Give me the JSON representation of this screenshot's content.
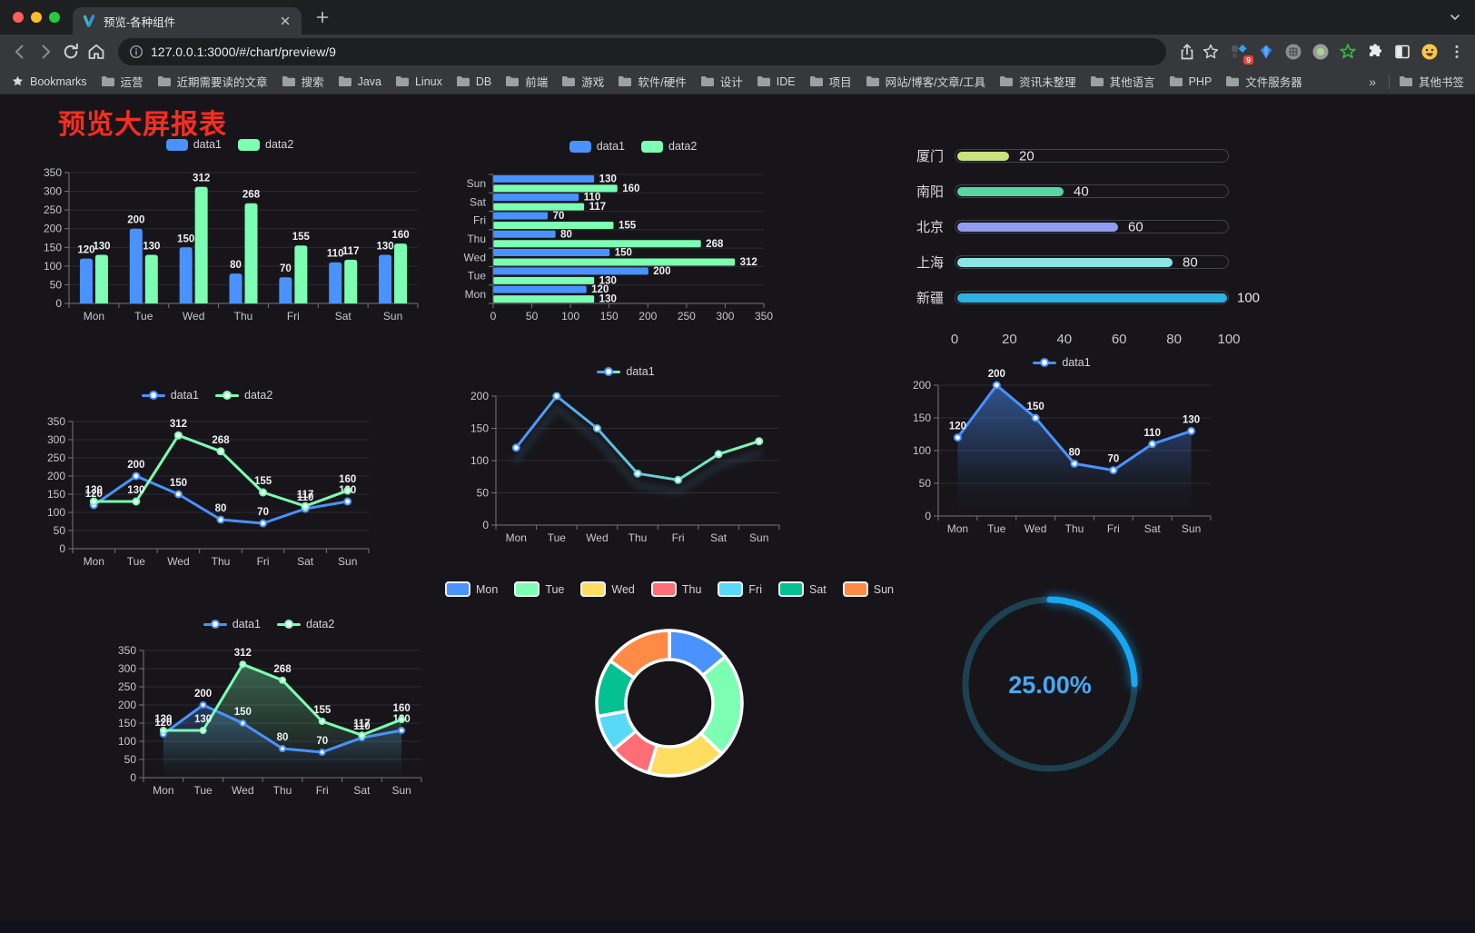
{
  "browser": {
    "tab_title": "预览-各种组件",
    "url": "127.0.0.1:3000/#/chart/preview/9",
    "extension_badge": "9",
    "bookmarks_label": "Bookmarks",
    "bookmarks": [
      "运营",
      "近期需要读的文章",
      "搜索",
      "Java",
      "Linux",
      "DB",
      "前端",
      "游戏",
      "软件/硬件",
      "设计",
      "IDE",
      "项目",
      "网站/博客/文章/工具",
      "资讯未整理",
      "其他语言",
      "PHP",
      "文件服务器"
    ],
    "bookmarks_overflow": "»",
    "other_bookmarks": "其他书签"
  },
  "page": {
    "title": "预览大屏报表",
    "title_color": "#fa2d1f"
  },
  "chart_data": [
    {
      "id": "grouped-bar",
      "type": "bar",
      "categories": [
        "Mon",
        "Tue",
        "Wed",
        "Thu",
        "Fri",
        "Sat",
        "Sun"
      ],
      "series": [
        {
          "name": "data1",
          "color": "#4992ff",
          "values": [
            120,
            200,
            150,
            80,
            70,
            110,
            130
          ]
        },
        {
          "name": "data2",
          "color": "#7cffb2",
          "values": [
            130,
            130,
            312,
            268,
            155,
            117,
            160
          ]
        }
      ],
      "ylim": [
        0,
        350
      ],
      "yticks": [
        0,
        50,
        100,
        150,
        200,
        250,
        300,
        350
      ],
      "legend": "top",
      "value_labels": true
    },
    {
      "id": "horizontal-bar",
      "type": "hbar",
      "categories": [
        "Mon",
        "Tue",
        "Wed",
        "Thu",
        "Fri",
        "Sat",
        "Sun"
      ],
      "series": [
        {
          "name": "data1",
          "color": "#4992ff",
          "values": [
            120,
            200,
            150,
            80,
            70,
            110,
            130
          ]
        },
        {
          "name": "data2",
          "color": "#7cffb2",
          "values": [
            130,
            130,
            312,
            268,
            155,
            117,
            160
          ]
        }
      ],
      "xlim": [
        0,
        350
      ],
      "xticks": [
        0,
        50,
        100,
        150,
        200,
        250,
        300,
        350
      ],
      "legend": "top",
      "value_labels": true
    },
    {
      "id": "city-progress",
      "type": "progress",
      "max": 100,
      "axis_ticks": [
        0,
        20,
        40,
        60,
        80,
        100
      ],
      "items": [
        {
          "label": "厦门",
          "value": 20,
          "color": "#c9e17e"
        },
        {
          "label": "南阳",
          "value": 40,
          "color": "#56d7a2"
        },
        {
          "label": "北京",
          "value": 60,
          "color": "#909df1"
        },
        {
          "label": "上海",
          "value": 80,
          "color": "#8be5e1"
        },
        {
          "label": "新疆",
          "value": 100,
          "color": "#30b1e4"
        }
      ]
    },
    {
      "id": "two-line",
      "type": "line",
      "categories": [
        "Mon",
        "Tue",
        "Wed",
        "Thu",
        "Fri",
        "Sat",
        "Sun"
      ],
      "series": [
        {
          "name": "data1",
          "color": "#4992ff",
          "values": [
            120,
            200,
            150,
            80,
            70,
            110,
            130
          ]
        },
        {
          "name": "data2",
          "color": "#7cffb2",
          "values": [
            130,
            130,
            312,
            268,
            155,
            117,
            160
          ]
        }
      ],
      "ylim": [
        0,
        350
      ],
      "yticks": [
        0,
        50,
        100,
        150,
        200,
        250,
        300,
        350
      ],
      "legend": "top",
      "value_labels": true
    },
    {
      "id": "gradient-line",
      "type": "line_gradient",
      "categories": [
        "Mon",
        "Tue",
        "Wed",
        "Thu",
        "Fri",
        "Sat",
        "Sun"
      ],
      "series": [
        {
          "name": "data1",
          "values": [
            120,
            200,
            150,
            80,
            70,
            110,
            130
          ]
        }
      ],
      "gradient": [
        "#4992ff",
        "#7cffb2"
      ],
      "ylim": [
        0,
        200
      ],
      "yticks": [
        0,
        50,
        100,
        150,
        200
      ],
      "legend": "top",
      "value_labels": false
    },
    {
      "id": "area-line",
      "type": "area",
      "categories": [
        "Mon",
        "Tue",
        "Wed",
        "Thu",
        "Fri",
        "Sat",
        "Sun"
      ],
      "series": [
        {
          "name": "data1",
          "color": "#4992ff",
          "values": [
            120,
            200,
            150,
            80,
            70,
            110,
            130
          ]
        }
      ],
      "ylim": [
        0,
        200
      ],
      "yticks": [
        0,
        50,
        100,
        150,
        200
      ],
      "legend": "top",
      "value_labels": true
    },
    {
      "id": "two-area-line",
      "type": "line_area2",
      "categories": [
        "Mon",
        "Tue",
        "Wed",
        "Thu",
        "Fri",
        "Sat",
        "Sun"
      ],
      "series": [
        {
          "name": "data1",
          "color": "#4992ff",
          "area_opacity": 0.3,
          "values": [
            120,
            200,
            150,
            80,
            70,
            110,
            130
          ]
        },
        {
          "name": "data2",
          "color": "#7cffb2",
          "area_opacity": 0.34,
          "values": [
            130,
            130,
            312,
            268,
            155,
            117,
            160
          ]
        }
      ],
      "ylim": [
        0,
        350
      ],
      "yticks": [
        0,
        50,
        100,
        150,
        200,
        250,
        300,
        350
      ],
      "legend": "top",
      "value_labels": true
    },
    {
      "id": "weekday-donut",
      "type": "pie",
      "legend": "top",
      "inner_radius": 48,
      "outer_radius": 80,
      "border_color": "#ffffff",
      "items": [
        {
          "label": "Mon",
          "value": 120,
          "color": "#4992ff"
        },
        {
          "label": "Tue",
          "value": 200,
          "color": "#7cffb2"
        },
        {
          "label": "Wed",
          "value": 150,
          "color": "#fddd60"
        },
        {
          "label": "Thu",
          "value": 80,
          "color": "#ff6e76"
        },
        {
          "label": "Fri",
          "value": 70,
          "color": "#58d9f9"
        },
        {
          "label": "Sat",
          "value": 110,
          "color": "#05c091"
        },
        {
          "label": "Sun",
          "value": 130,
          "color": "#ff8a45"
        }
      ]
    },
    {
      "id": "percent-gauge",
      "type": "gauge",
      "value": 25,
      "max": 100,
      "label": "25.00%",
      "color": "#19a7f4",
      "track_color": "#1e4150",
      "label_color": "#47a9f1"
    }
  ]
}
